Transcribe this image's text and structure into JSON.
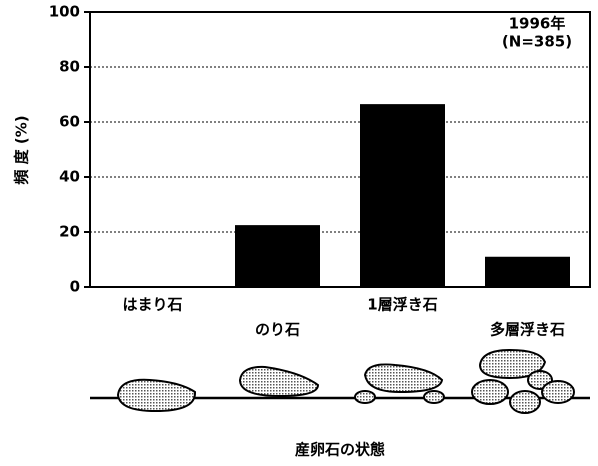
{
  "chart_data": {
    "type": "bar",
    "y_label": "頻 度 (%)",
    "x_label": "産卵石の状態",
    "annotation": [
      "1996年",
      "(N=385)"
    ],
    "categories": [
      "はまり石",
      "のり石",
      "1層浮き石",
      "多層浮き石"
    ],
    "values": [
      0,
      22.5,
      66.5,
      11
    ],
    "color": "#000000",
    "ylim": [
      0,
      100
    ],
    "yticks": [
      0,
      20,
      40,
      60,
      80,
      100
    ],
    "grid": true
  }
}
